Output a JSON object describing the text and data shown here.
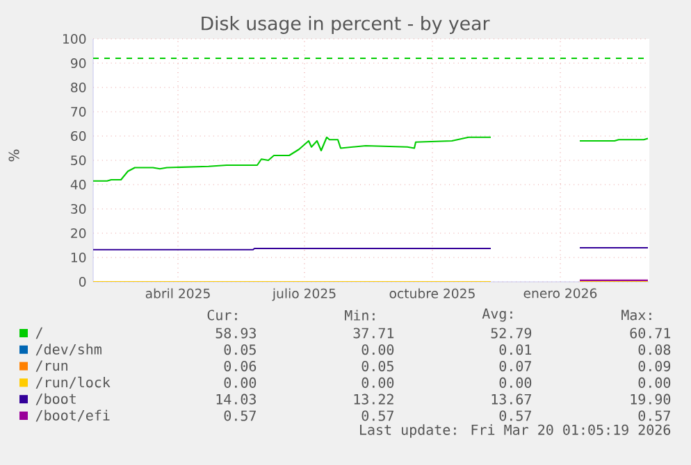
{
  "chart_data": {
    "type": "line",
    "title": "Disk usage in percent - by year",
    "ylabel": "%",
    "xlim": [
      "2025-02-13",
      "2026-03-20"
    ],
    "xticks": [
      {
        "value": "2025-04-15",
        "label": "abril 2025"
      },
      {
        "value": "2025-07-15",
        "label": "julio 2025"
      },
      {
        "value": "2025-10-15",
        "label": "octubre 2025"
      },
      {
        "value": "2026-01-15",
        "label": "enero 2026"
      }
    ],
    "ylim": [
      0,
      100
    ],
    "yticks": [
      0,
      10,
      20,
      30,
      40,
      50,
      60,
      70,
      80,
      90,
      100
    ],
    "grid": true,
    "legend": "bottom",
    "ref_lines": [
      {
        "axis": "y",
        "value": 92,
        "color": "#00cc00",
        "line_style": "dashed"
      }
    ],
    "series": [
      {
        "name": "/",
        "color": "#00cc00",
        "x": [
          "2025-02-13",
          "2025-02-23",
          "2025-02-26",
          "2025-03-05",
          "2025-03-10",
          "2025-03-15",
          "2025-03-28",
          "2025-04-02",
          "2025-04-07",
          "2025-05-07",
          "2025-05-20",
          "2025-06-11",
          "2025-06-14",
          "2025-06-19",
          "2025-06-23",
          "2025-07-04",
          "2025-07-11",
          "2025-07-18",
          "2025-07-20",
          "2025-07-24",
          "2025-07-27",
          "2025-07-31",
          "2025-08-02",
          "2025-08-08",
          "2025-08-10",
          "2025-08-28",
          "2025-09-27",
          "2025-10-02",
          "2025-10-03",
          "2025-10-29",
          "2025-11-10",
          "2025-11-26",
          "2025-12-28",
          "2026-01-29",
          "2026-02-23",
          "2026-02-26",
          "2026-03-16",
          "2026-03-19"
        ],
        "values": [
          41.5,
          41.5,
          42,
          42,
          45.5,
          47,
          47,
          46.5,
          47,
          47.5,
          48,
          48,
          50.5,
          50,
          52,
          52,
          54.5,
          58,
          55.5,
          58,
          54,
          59.5,
          58.5,
          58.5,
          55,
          56,
          55.5,
          55,
          57.5,
          58,
          59.5,
          59.5,
          null,
          58,
          58,
          58.5,
          58.5,
          59
        ]
      },
      {
        "name": "/dev/shm",
        "color": "#0066b3"
      },
      {
        "name": "/run",
        "color": "#ff8000"
      },
      {
        "name": "/run/lock",
        "color": "#ffcc00",
        "x": [
          "2025-02-13",
          "2025-11-26",
          "2025-12-28",
          "2026-01-29",
          "2026-03-19"
        ],
        "values": [
          0,
          0,
          null,
          0,
          0
        ]
      },
      {
        "name": "/boot",
        "color": "#330099",
        "x": [
          "2025-02-13",
          "2025-06-08",
          "2025-06-09",
          "2025-11-26",
          "2025-12-28",
          "2026-01-29",
          "2026-03-19"
        ],
        "values": [
          13.2,
          13.2,
          13.7,
          13.7,
          null,
          14,
          14
        ]
      },
      {
        "name": "/boot/efi",
        "color": "#990099",
        "x": [
          "2026-01-29",
          "2026-03-19"
        ],
        "values": [
          0.6,
          0.6
        ]
      }
    ],
    "annotations": [
      "Cur:",
      "Min:",
      "Avg:",
      "Max:",
      "58.93",
      "37.71",
      "52.79",
      "60.71",
      "0.05",
      "0.00",
      "0.01",
      "0.08",
      "0.06",
      "0.05",
      "0.07",
      "0.09",
      "0.00",
      "0.00",
      "0.00",
      "0.00",
      "14.03",
      "13.22",
      "13.67",
      "19.90",
      "0.57",
      "0.57",
      "0.57",
      "0.57",
      "Last update: Fri Mar 20 01:05:19 2026"
    ]
  }
}
